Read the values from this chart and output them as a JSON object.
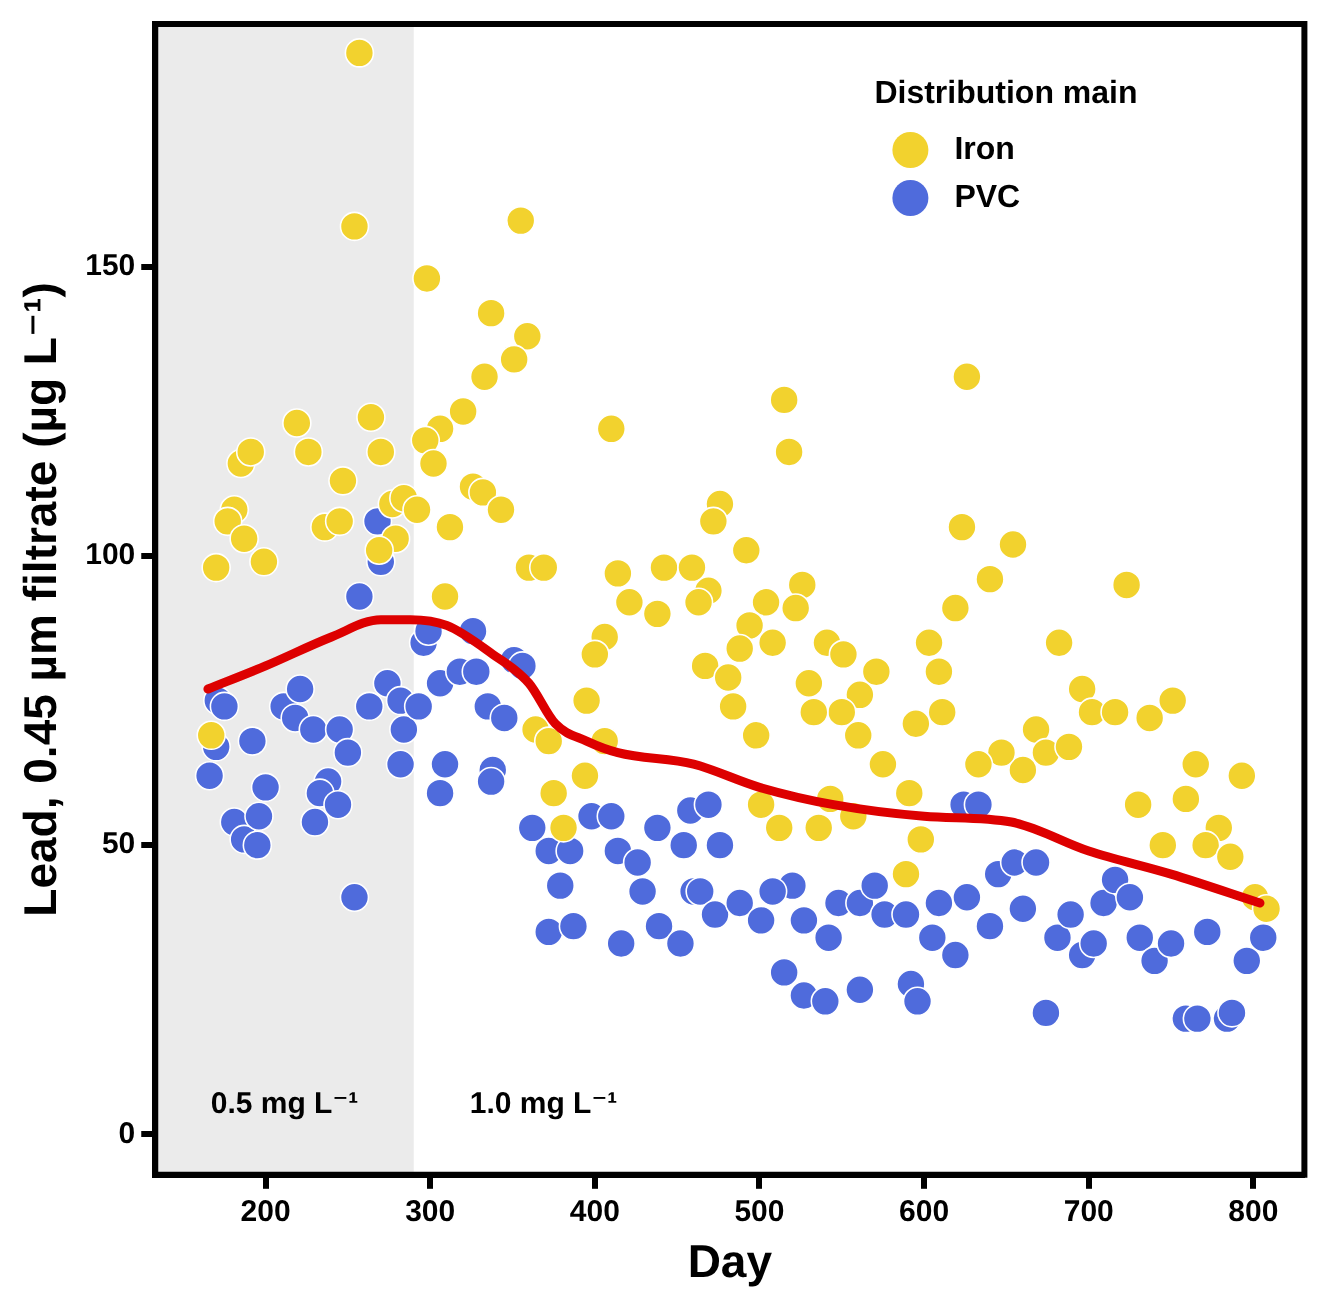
{
  "chart_data": {
    "type": "scatter",
    "xlabel": "Day",
    "ylabel": "Lead, 0.45 µm filtrate (µg L⁻¹)",
    "legend_title": "Distribution main",
    "legend": "top right",
    "marker": "circle",
    "grid": false,
    "xlim": [
      133,
      831
    ],
    "xticks": [
      200,
      300,
      400,
      500,
      600,
      700,
      800
    ],
    "ylim": [
      -7,
      192
    ],
    "yticks": [
      0,
      50,
      100,
      150
    ],
    "bands": [
      {
        "axis": "x",
        "from": 133,
        "to": 290,
        "label": "0.5 mg L⁻¹",
        "color": "#ebebeb"
      }
    ],
    "annotations": [
      "1.0 mg L⁻¹"
    ],
    "series": [
      {
        "name": "Iron",
        "color": "#f2d22e",
        "x": [
          167,
          181,
          177,
          185,
          191,
          187,
          199,
          170,
          219,
          226,
          236,
          245,
          257,
          254,
          264,
          270,
          247,
          277,
          284,
          292,
          279,
          269,
          312,
          326,
          332,
          343,
          360,
          369,
          309,
          355,
          298,
          337,
          359,
          351,
          333,
          320,
          306,
          297,
          302,
          515,
          518,
          410,
          476,
          472,
          492,
          414,
          442,
          459,
          469,
          463,
          526,
          522,
          504,
          421,
          438,
          406,
          400,
          494,
          508,
          488,
          541,
          551,
          603,
          682,
          696,
          702,
          716,
          737,
          751,
          668,
          674,
          688,
          660,
          647,
          633,
          609,
          611,
          595,
          575,
          591,
          598,
          589,
          571,
          561,
          550,
          533,
          560,
          530,
          467,
          481,
          484,
          498,
          501,
          512,
          536,
          543,
          557,
          765,
          793,
          759,
          730,
          745,
          779,
          771,
          786,
          801,
          808,
          626,
          623,
          654,
          640,
          723,
          619,
          364,
          372,
          395,
          406,
          394,
          375,
          381
        ],
        "values": [
          69,
          108,
          106,
          116,
          118,
          103,
          99,
          98,
          123,
          118,
          105,
          106,
          187,
          157,
          124,
          118,
          113,
          109,
          110,
          108,
          103,
          101,
          105,
          112,
          111,
          108,
          98,
          98,
          93,
          158,
          148,
          142,
          138,
          134,
          131,
          125,
          122,
          120,
          116,
          127,
          118,
          122,
          109,
          106,
          101,
          97,
          98,
          98,
          94,
          92,
          95,
          91,
          92,
          92,
          90,
          86,
          83,
          88,
          85,
          84,
          85,
          83,
          85,
          85,
          77,
          73,
          73,
          72,
          75,
          70,
          66,
          67,
          63,
          66,
          64,
          80,
          73,
          71,
          64,
          59,
          51,
          45,
          80,
          76,
          73,
          73,
          69,
          78,
          81,
          79,
          74,
          69,
          57,
          53,
          53,
          58,
          55,
          64,
          62,
          58,
          57,
          50,
          53,
          50,
          48,
          41,
          39,
          131,
          105,
          102,
          96,
          95,
          91,
          70,
          68,
          75,
          68,
          62,
          59,
          53
        ]
      },
      {
        "name": "PVC",
        "color": "#4f6bdc",
        "x": [
          257,
          268,
          270,
          171,
          175,
          170,
          166,
          192,
          200,
          181,
          187,
          195,
          196,
          211,
          221,
          218,
          229,
          245,
          250,
          238,
          233,
          230,
          244,
          254,
          263,
          274,
          282,
          284,
          282,
          293,
          296,
          299,
          306,
          318,
          328,
          326,
          351,
          356,
          335,
          345,
          309,
          306,
          338,
          337,
          362,
          372,
          379,
          385,
          398,
          410,
          414,
          426,
          429,
          372,
          387,
          416,
          438,
          439,
          452,
          458,
          454,
          460,
          469,
          476,
          464,
          473,
          488,
          501,
          520,
          508,
          527,
          542,
          548,
          561,
          570,
          576,
          589,
          515,
          527,
          540,
          561,
          592,
          596,
          619,
          605,
          609,
          626,
          640,
          624,
          633,
          645,
          655,
          668,
          660,
          681,
          689,
          696,
          703,
          674,
          709,
          716,
          725,
          731,
          740,
          750,
          772,
          806,
          796,
          759,
          766,
          784,
          787
        ],
        "values": [
          93,
          106,
          99,
          75,
          74,
          67,
          62,
          68,
          60,
          54,
          51,
          50,
          55,
          74,
          77,
          72,
          70,
          70,
          66,
          61,
          59,
          54,
          57,
          41,
          74,
          78,
          75,
          70,
          64,
          74,
          85,
          87,
          78,
          80,
          80,
          87,
          82,
          81,
          74,
          72,
          64,
          59,
          63,
          61,
          53,
          49,
          43,
          49,
          55,
          55,
          49,
          47,
          42,
          35,
          36,
          33,
          53,
          36,
          33,
          56,
          50,
          42,
          57,
          50,
          42,
          38,
          40,
          37,
          43,
          42,
          37,
          34,
          40,
          40,
          43,
          38,
          38,
          28,
          24,
          23,
          25,
          26,
          23,
          31,
          34,
          40,
          41,
          36,
          57,
          57,
          45,
          47,
          47,
          39,
          34,
          38,
          31,
          33,
          21,
          40,
          44,
          41,
          34,
          30,
          33,
          35,
          34,
          30,
          20,
          20,
          20,
          21
        ]
      },
      {
        "type": "line",
        "color": "#dd0000",
        "line_style": "solid",
        "marker": "none",
        "x": [
          165,
          200,
          240,
          270,
          288,
          310,
          338,
          360,
          376,
          395,
          414,
          460,
          500,
          545,
          600,
          653,
          700,
          750,
          804
        ],
        "values": [
          77,
          81,
          86,
          89,
          89,
          88,
          83,
          78,
          71,
          68,
          66,
          64,
          60,
          57,
          55,
          54,
          49,
          45,
          40
        ]
      }
    ]
  }
}
